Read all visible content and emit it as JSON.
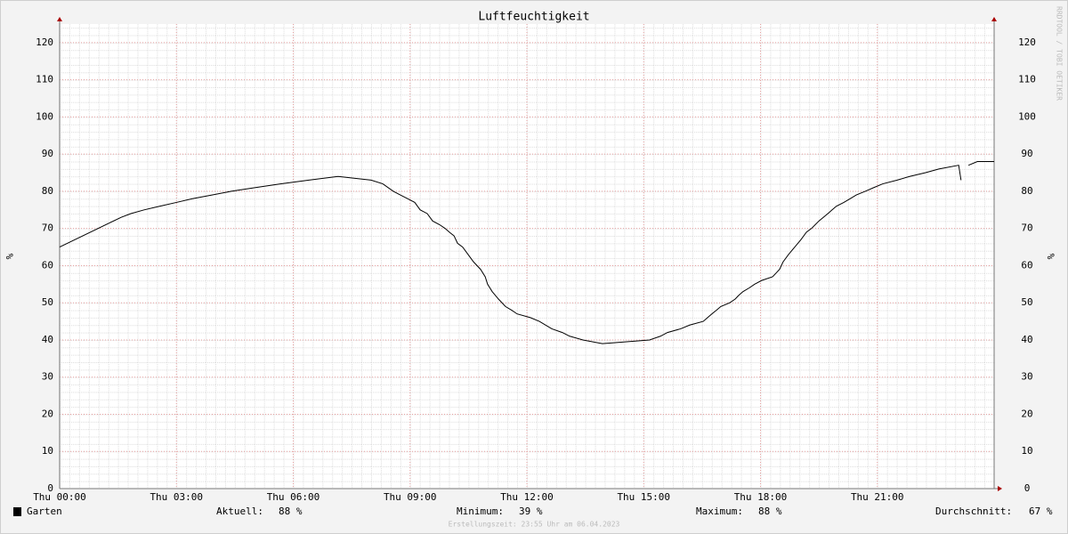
{
  "chart_data": {
    "type": "line",
    "title": "Luftfeuchtigkeit",
    "y_label": "%",
    "x": [
      0,
      1.58,
      1.83,
      2.17,
      2.58,
      3.0,
      3.41,
      3.91,
      4.41,
      5.03,
      5.67,
      6.4,
      7.15,
      8.0,
      8.3,
      8.57,
      8.75,
      8.94,
      9.12,
      9.26,
      9.44,
      9.58,
      9.76,
      9.9,
      10.01,
      10.13,
      10.22,
      10.35,
      10.49,
      10.63,
      10.81,
      10.93,
      10.99,
      11.11,
      11.27,
      11.45,
      11.61,
      11.75,
      12.09,
      12.32,
      12.64,
      12.91,
      13.1,
      13.44,
      13.94,
      15.15,
      15.43,
      15.61,
      15.95,
      16.18,
      16.53,
      16.64,
      16.75,
      16.87,
      16.98,
      17.21,
      17.35,
      17.44,
      17.55,
      17.71,
      17.85,
      18.03,
      18.31,
      18.4,
      18.49,
      18.58,
      18.72,
      18.88,
      19.04,
      19.18,
      19.31,
      19.5,
      19.73,
      19.84,
      19.95,
      20.14,
      20.3,
      20.46,
      20.69,
      20.91,
      21.14,
      21.51,
      21.83,
      22.24,
      22.58,
      23.09,
      23.15,
      23.2,
      23.34,
      23.57,
      24
    ],
    "series": [
      {
        "name": "Garten",
        "color": "#000000",
        "values": [
          65,
          73,
          74,
          75,
          76,
          77,
          78,
          79,
          80,
          81,
          82,
          83,
          84,
          83,
          82,
          80,
          79,
          78,
          77,
          75,
          74,
          72,
          71,
          70,
          69,
          68,
          66,
          65,
          63,
          61,
          59,
          57,
          55,
          53,
          51,
          49,
          48,
          47,
          46,
          45,
          43,
          42,
          41,
          40,
          39,
          40,
          41,
          42,
          43,
          44,
          45,
          46,
          47,
          48,
          49,
          50,
          51,
          52,
          53,
          54,
          55,
          56,
          57,
          58,
          59,
          61,
          63,
          65,
          67,
          69,
          70,
          72,
          74,
          75,
          76,
          77,
          78,
          79,
          80,
          81,
          82,
          83,
          84,
          85,
          86,
          87,
          83,
          null,
          87,
          88,
          88
        ]
      }
    ],
    "xlim": [
      0,
      24
    ],
    "xticks": [
      {
        "value": 0,
        "label": "Thu 00:00"
      },
      {
        "value": 3,
        "label": "Thu 03:00"
      },
      {
        "value": 6,
        "label": "Thu 06:00"
      },
      {
        "value": 9,
        "label": "Thu 09:00"
      },
      {
        "value": 12,
        "label": "Thu 12:00"
      },
      {
        "value": 15,
        "label": "Thu 15:00"
      },
      {
        "value": 18,
        "label": "Thu 18:00"
      },
      {
        "value": 21,
        "label": "Thu 21:00"
      }
    ],
    "ylim": [
      0,
      125
    ],
    "yticks": [
      0,
      10,
      20,
      30,
      40,
      50,
      60,
      70,
      80,
      90,
      100,
      110,
      120
    ],
    "grid": true,
    "stats": [
      {
        "label": "Aktuell:",
        "text": "88 %"
      },
      {
        "label": "Minimum:",
        "text": "39 %"
      },
      {
        "label": "Maximum:",
        "text": "88 %"
      },
      {
        "label": "Durchschnitt:",
        "text": "67 %"
      }
    ],
    "footer": "Erstellungszeit: 23:55 Uhr am 06.04.2023",
    "watermark": "RRDTOOL / TOBI OETIKER"
  }
}
